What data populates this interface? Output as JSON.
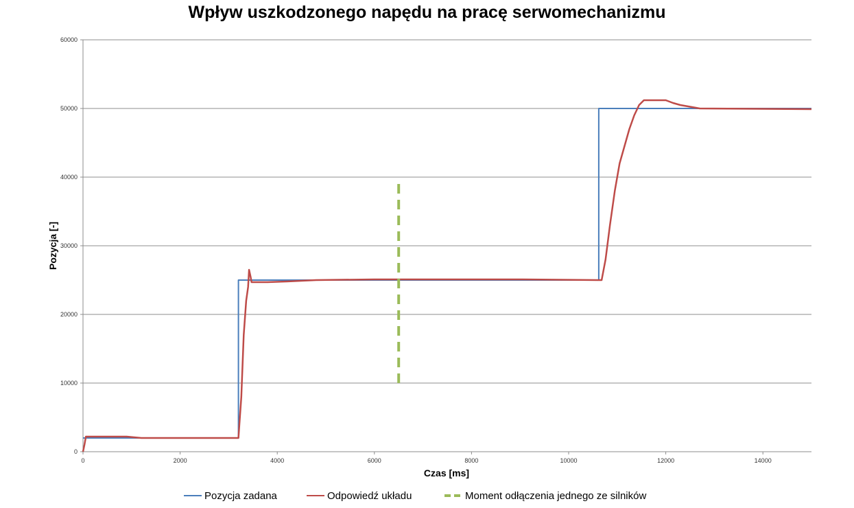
{
  "chart_data": {
    "type": "line",
    "title": "Wpływ uszkodzonego napędu na pracę serwomechanizmu",
    "xlabel": "Czas [ms]",
    "ylabel": "Pozycja [-]",
    "xlim": [
      0,
      15000
    ],
    "ylim": [
      0,
      60000
    ],
    "x_ticks": [
      0,
      2000,
      4000,
      6000,
      8000,
      10000,
      12000,
      14000
    ],
    "y_ticks": [
      0,
      10000,
      20000,
      30000,
      40000,
      50000,
      60000
    ],
    "grid": "horizontal",
    "legend_position": "bottom",
    "series": [
      {
        "name": "Pozycja zadana",
        "color": "#4a7ebb",
        "style": "solid",
        "points": [
          [
            0,
            2000
          ],
          [
            3200,
            2000
          ],
          [
            3200,
            25000
          ],
          [
            10620,
            25000
          ],
          [
            10620,
            50000
          ],
          [
            15000,
            50000
          ]
        ]
      },
      {
        "name": "Odpowiedź układu",
        "color": "#be4b48",
        "style": "solid",
        "points": [
          [
            0,
            0
          ],
          [
            30,
            1000
          ],
          [
            60,
            2200
          ],
          [
            900,
            2200
          ],
          [
            1200,
            2000
          ],
          [
            3200,
            2000
          ],
          [
            3260,
            8000
          ],
          [
            3310,
            17000
          ],
          [
            3360,
            22000
          ],
          [
            3400,
            24000
          ],
          [
            3420,
            26500
          ],
          [
            3450,
            25500
          ],
          [
            3470,
            24700
          ],
          [
            3800,
            24700
          ],
          [
            4200,
            24800
          ],
          [
            4800,
            25000
          ],
          [
            6000,
            25100
          ],
          [
            9000,
            25100
          ],
          [
            10600,
            25000
          ],
          [
            10680,
            25000
          ],
          [
            10760,
            28000
          ],
          [
            10850,
            33000
          ],
          [
            10950,
            38000
          ],
          [
            11050,
            42000
          ],
          [
            11150,
            44500
          ],
          [
            11250,
            47000
          ],
          [
            11350,
            49000
          ],
          [
            11450,
            50500
          ],
          [
            11550,
            51200
          ],
          [
            11700,
            51200
          ],
          [
            12000,
            51200
          ],
          [
            12150,
            50800
          ],
          [
            12300,
            50500
          ],
          [
            12700,
            50000
          ],
          [
            15000,
            49900
          ]
        ]
      },
      {
        "name": "Moment odłączenia jednego ze silników",
        "color": "#9bbb59",
        "style": "dashed",
        "points": [
          [
            6500,
            10000
          ],
          [
            6500,
            39500
          ]
        ]
      }
    ]
  }
}
